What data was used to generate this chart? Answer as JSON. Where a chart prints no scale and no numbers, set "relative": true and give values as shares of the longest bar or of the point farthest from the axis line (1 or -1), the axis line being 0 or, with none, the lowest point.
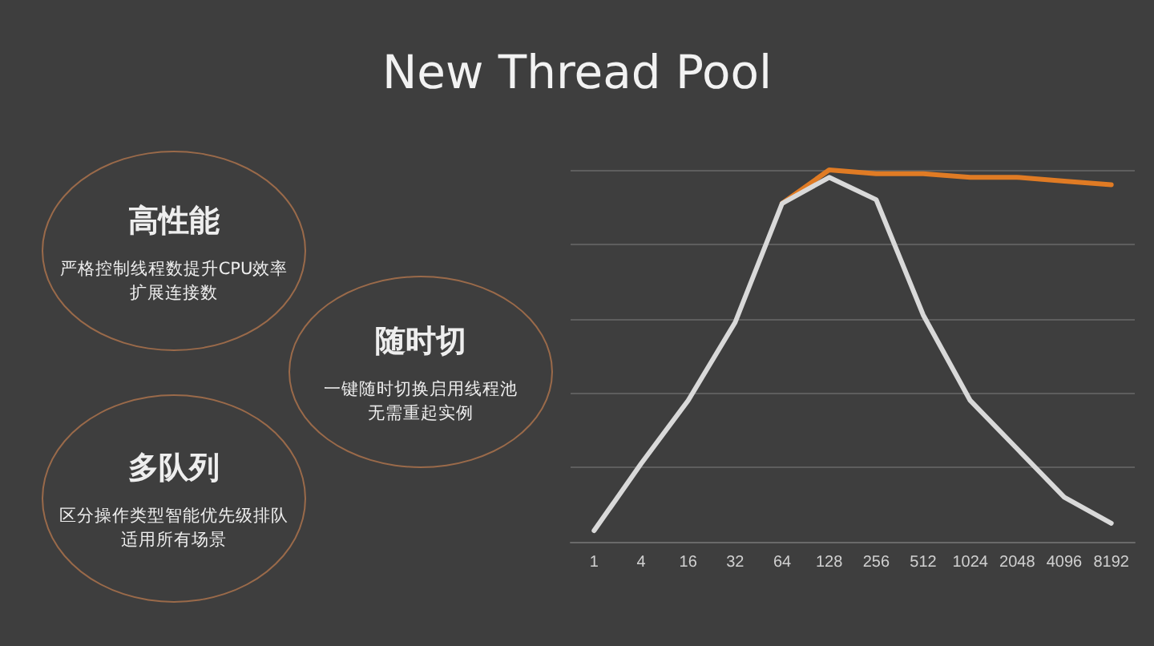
{
  "chart_data": {
    "type": "line",
    "title": "New Thread Pool",
    "categories": [
      "1",
      "4",
      "16",
      "32",
      "64",
      "128",
      "256",
      "512",
      "1024",
      "2048",
      "4096",
      "8192"
    ],
    "relative": true,
    "series": [
      {
        "color": "#e07b24",
        "values": [
          null,
          null,
          null,
          null,
          0.91,
          1,
          0.99,
          0.99,
          0.98,
          0.98,
          0.97,
          0.96
        ]
      },
      {
        "color": "#d9d9d9",
        "values": [
          0.03,
          0.21,
          0.38,
          0.59,
          0.91,
          0.98,
          0.92,
          0.61,
          0.38,
          0.25,
          0.12,
          0.05
        ]
      }
    ],
    "annotations": [
      "高性能",
      "严格控制线程数提升CPU效率",
      "扩展连接数",
      "随时切",
      "一键随时切换启用线程池",
      "无需重起实例",
      "多队列",
      "区分操作类型智能优先级排队",
      "适用所有场景"
    ],
    "grid": "y",
    "marker": "none",
    "line_style": "solid"
  }
}
